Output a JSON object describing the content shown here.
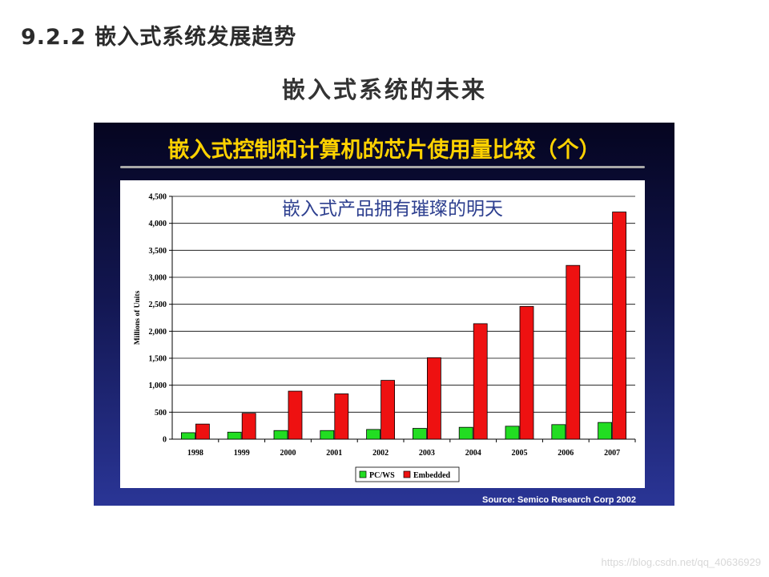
{
  "header": {
    "section_heading": "9.2.2 嵌入式系统发展趋势",
    "subtitle": "嵌入式系统的未来"
  },
  "panel": {
    "title": "嵌入式控制和计算机的芯片使用量比较（个）",
    "source": "Source: Semico Research Corp 2002"
  },
  "watermark": "https://blog.csdn.net/qq_40636929",
  "colors": {
    "pcws": "#22dd22",
    "embedded": "#ee1111",
    "title": "#ffd200"
  },
  "chart_data": {
    "type": "bar",
    "title": "",
    "annotation": "嵌入式产品拥有璀璨的明天",
    "xlabel": "",
    "ylabel": "Millions of Units",
    "categories": [
      "1998",
      "1999",
      "2000",
      "2001",
      "2002",
      "2003",
      "2004",
      "2005",
      "2006",
      "2007"
    ],
    "series": [
      {
        "name": "PC/WS",
        "values": [
          120,
          130,
          160,
          160,
          180,
          200,
          220,
          240,
          270,
          310
        ]
      },
      {
        "name": "Embedded",
        "values": [
          280,
          480,
          890,
          840,
          1090,
          1510,
          2140,
          2460,
          3220,
          4210
        ]
      }
    ],
    "ylim": [
      0,
      4500
    ],
    "yticks": [
      0,
      500,
      1000,
      1500,
      2000,
      2500,
      3000,
      3500,
      4000,
      4500
    ],
    "ytick_labels": [
      "0",
      "500",
      "1,000",
      "1,500",
      "2,000",
      "2,500",
      "3,000",
      "3,500",
      "4,000",
      "4,500"
    ],
    "grid": true,
    "legend": "bottom-center"
  }
}
